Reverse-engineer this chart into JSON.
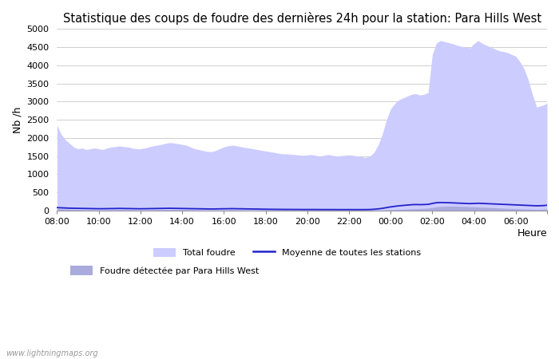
{
  "title": "Statistique des coups de foudre des dernières 24h pour la station: Para Hills West",
  "xlabel": "Heure",
  "ylabel": "Nb /h",
  "ylim": [
    0,
    5000
  ],
  "yticks": [
    0,
    500,
    1000,
    1500,
    2000,
    2500,
    3000,
    3500,
    4000,
    4500,
    5000
  ],
  "xtick_labels": [
    "08:00",
    "10:00",
    "12:00",
    "14:00",
    "16:00",
    "18:00",
    "20:00",
    "22:00",
    "00:00",
    "02:00",
    "04:00",
    "06:00",
    ""
  ],
  "watermark": "www.lightningmaps.org",
  "legend_total": "Total foudre",
  "legend_detected": "Foudre détectée par Para Hills West",
  "legend_moyenne": "Moyenne de toutes les stations",
  "total_color": "#ccccff",
  "detected_color": "#aaaadd",
  "moyenne_color": "#2222cc",
  "background_color": "#ffffff",
  "grid_color": "#bbbbbb",
  "title_fontsize": 10.5,
  "hours": [
    0.0,
    0.2,
    0.4,
    0.6,
    0.8,
    1.0,
    1.2,
    1.4,
    1.6,
    1.8,
    2.0,
    2.2,
    2.4,
    2.6,
    2.8,
    3.0,
    3.2,
    3.4,
    3.6,
    3.8,
    4.0,
    4.2,
    4.4,
    4.6,
    4.8,
    5.0,
    5.2,
    5.4,
    5.6,
    5.8,
    6.0,
    6.2,
    6.4,
    6.6,
    6.8,
    7.0,
    7.2,
    7.4,
    7.6,
    7.8,
    8.0,
    8.2,
    8.4,
    8.6,
    8.8,
    9.0,
    9.2,
    9.4,
    9.6,
    9.8,
    10.0,
    10.2,
    10.4,
    10.6,
    10.8,
    11.0,
    11.2,
    11.4,
    11.6,
    11.8,
    12.0,
    12.2,
    12.4,
    12.6,
    12.8,
    13.0,
    13.2,
    13.4,
    13.6,
    13.8,
    14.0,
    14.2,
    14.4,
    14.6,
    14.8,
    15.0,
    15.2,
    15.4,
    15.6,
    15.8,
    16.0,
    16.2,
    16.4,
    16.6,
    16.8,
    17.0,
    17.2,
    17.4,
    17.6,
    17.8,
    18.0,
    18.2,
    18.4,
    18.6,
    18.8,
    19.0,
    19.2,
    19.4,
    19.6,
    19.8,
    20.0,
    20.2,
    20.4,
    20.6,
    20.8,
    21.0,
    21.2,
    21.4,
    21.6,
    21.8,
    22.0,
    22.2,
    22.4,
    22.6,
    22.8,
    23.0,
    23.3,
    23.5
  ],
  "total_y": [
    2350,
    2100,
    1950,
    1850,
    1750,
    1700,
    1720,
    1680,
    1700,
    1720,
    1700,
    1680,
    1720,
    1750,
    1760,
    1780,
    1760,
    1750,
    1720,
    1700,
    1700,
    1720,
    1750,
    1780,
    1800,
    1820,
    1850,
    1870,
    1860,
    1840,
    1820,
    1800,
    1750,
    1700,
    1680,
    1650,
    1630,
    1620,
    1650,
    1700,
    1750,
    1780,
    1800,
    1780,
    1760,
    1740,
    1720,
    1700,
    1680,
    1660,
    1640,
    1620,
    1600,
    1580,
    1560,
    1560,
    1550,
    1540,
    1530,
    1520,
    1530,
    1540,
    1520,
    1500,
    1520,
    1540,
    1520,
    1500,
    1510,
    1520,
    1530,
    1520,
    1500,
    1480,
    1460,
    1500,
    1600,
    1800,
    2100,
    2500,
    2800,
    2950,
    3050,
    3100,
    3150,
    3200,
    3220,
    3180,
    3200,
    3250,
    4300,
    4620,
    4680,
    4650,
    4620,
    4590,
    4550,
    4520,
    4500,
    4480,
    4600,
    4680,
    4600,
    4550,
    4500,
    4450,
    4400,
    4380,
    4350,
    4300,
    4250,
    4100,
    3900,
    3600,
    3200,
    2850,
    2900,
    2950
  ],
  "detected_y": [
    50,
    45,
    40,
    35,
    30,
    25,
    22,
    20,
    18,
    16,
    15,
    14,
    16,
    18,
    20,
    22,
    20,
    18,
    16,
    14,
    12,
    14,
    16,
    18,
    20,
    22,
    24,
    26,
    24,
    22,
    20,
    18,
    16,
    14,
    12,
    10,
    9,
    8,
    9,
    10,
    12,
    14,
    16,
    14,
    12,
    10,
    9,
    8,
    7,
    6,
    6,
    6,
    5,
    5,
    5,
    5,
    5,
    4,
    4,
    4,
    4,
    4,
    4,
    3,
    3,
    3,
    3,
    3,
    3,
    3,
    3,
    3,
    3,
    3,
    3,
    4,
    5,
    7,
    10,
    15,
    20,
    25,
    30,
    35,
    40,
    45,
    50,
    55,
    60,
    65,
    80,
    100,
    110,
    115,
    120,
    120,
    118,
    115,
    110,
    105,
    100,
    95,
    90,
    85,
    80,
    75,
    70,
    65,
    60,
    55,
    50,
    45,
    40,
    38,
    35,
    30,
    35,
    40
  ],
  "moyenne_y": [
    80,
    75,
    70,
    65,
    62,
    60,
    58,
    56,
    54,
    52,
    50,
    50,
    52,
    54,
    56,
    58,
    56,
    54,
    52,
    50,
    48,
    50,
    52,
    54,
    56,
    58,
    60,
    62,
    60,
    58,
    56,
    54,
    52,
    50,
    48,
    46,
    44,
    42,
    44,
    46,
    48,
    50,
    52,
    50,
    48,
    46,
    44,
    42,
    40,
    38,
    36,
    34,
    33,
    32,
    31,
    30,
    30,
    29,
    29,
    28,
    28,
    28,
    28,
    27,
    27,
    27,
    27,
    26,
    26,
    26,
    26,
    26,
    26,
    26,
    26,
    28,
    35,
    45,
    60,
    80,
    100,
    115,
    130,
    140,
    150,
    160,
    165,
    162,
    165,
    170,
    195,
    215,
    220,
    218,
    215,
    210,
    205,
    200,
    195,
    190,
    195,
    200,
    195,
    190,
    185,
    180,
    175,
    170,
    165,
    160,
    155,
    150,
    145,
    140,
    135,
    130,
    135,
    145
  ]
}
